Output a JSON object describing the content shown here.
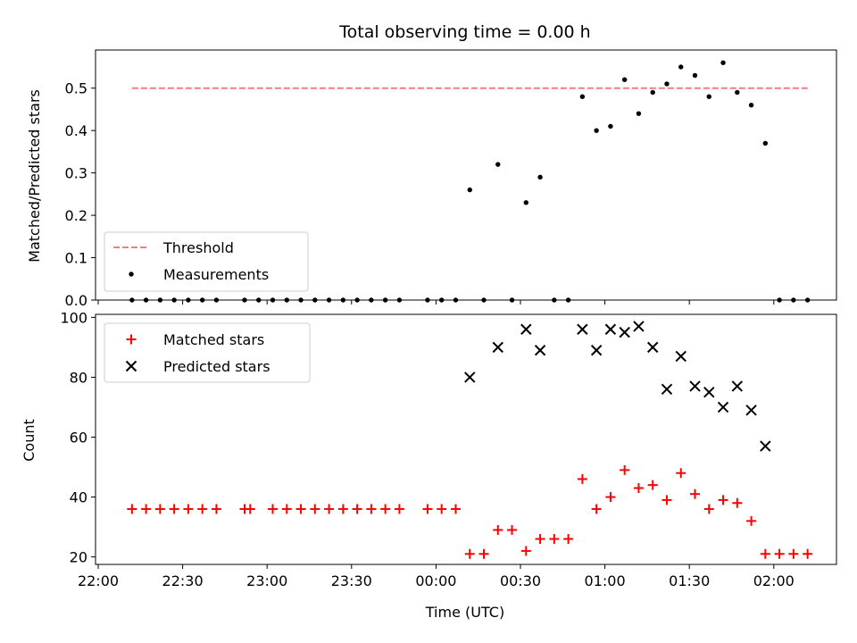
{
  "chart_data": [
    {
      "type": "scatter",
      "title": "Total observing time = 0.00 h",
      "ylabel": "Matched/Predicted stars",
      "ylim": [
        0,
        0.59
      ],
      "yticks": [
        "0.0",
        "0.1",
        "0.2",
        "0.3",
        "0.4",
        "0.5"
      ],
      "legend_position": "lower-left",
      "threshold": {
        "name": "Threshold",
        "value": 0.5,
        "x_start": "22:12",
        "x_end": "02:12",
        "color": "#f08080"
      },
      "series": [
        {
          "name": "Measurements",
          "color": "#000000",
          "points": [
            [
              "22:12",
              0
            ],
            [
              "22:17",
              0
            ],
            [
              "22:22",
              0
            ],
            [
              "22:27",
              0
            ],
            [
              "22:32",
              0
            ],
            [
              "22:37",
              0
            ],
            [
              "22:42",
              0
            ],
            [
              "22:52",
              0
            ],
            [
              "22:57",
              0
            ],
            [
              "23:02",
              0
            ],
            [
              "23:07",
              0
            ],
            [
              "23:12",
              0
            ],
            [
              "23:17",
              0
            ],
            [
              "23:22",
              0
            ],
            [
              "23:27",
              0
            ],
            [
              "23:32",
              0
            ],
            [
              "23:37",
              0
            ],
            [
              "23:42",
              0
            ],
            [
              "23:47",
              0
            ],
            [
              "23:57",
              0
            ],
            [
              "00:02",
              0
            ],
            [
              "00:07",
              0
            ],
            [
              "00:12",
              0.26
            ],
            [
              "00:17",
              0
            ],
            [
              "00:22",
              0.32
            ],
            [
              "00:27",
              0
            ],
            [
              "00:32",
              0.23
            ],
            [
              "00:37",
              0.29
            ],
            [
              "00:42",
              0
            ],
            [
              "00:47",
              0
            ],
            [
              "00:52",
              0.48
            ],
            [
              "00:57",
              0.4
            ],
            [
              "01:02",
              0.41
            ],
            [
              "01:07",
              0.52
            ],
            [
              "01:12",
              0.44
            ],
            [
              "01:17",
              0.49
            ],
            [
              "01:22",
              0.51
            ],
            [
              "01:27",
              0.55
            ],
            [
              "01:32",
              0.53
            ],
            [
              "01:37",
              0.48
            ],
            [
              "01:42",
              0.56
            ],
            [
              "01:47",
              0.49
            ],
            [
              "01:52",
              0.46
            ],
            [
              "01:57",
              0.37
            ],
            [
              "02:02",
              0
            ],
            [
              "02:07",
              0
            ],
            [
              "02:12",
              0
            ]
          ]
        }
      ]
    },
    {
      "type": "scatter",
      "xlabel": "Time (UTC)",
      "ylabel": "Count",
      "ylim": [
        17.5,
        101
      ],
      "yticks": [
        "20",
        "40",
        "60",
        "80",
        "100"
      ],
      "xticks": [
        "22:00",
        "22:30",
        "23:00",
        "23:30",
        "00:00",
        "00:30",
        "01:00",
        "01:30",
        "02:00"
      ],
      "legend_position": "upper-left",
      "series": [
        {
          "name": "Matched stars",
          "color": "#ff0000",
          "marker": "plus",
          "points": [
            [
              "22:12",
              36
            ],
            [
              "22:17",
              36
            ],
            [
              "22:22",
              36
            ],
            [
              "22:27",
              36
            ],
            [
              "22:32",
              36
            ],
            [
              "22:37",
              36
            ],
            [
              "22:42",
              36
            ],
            [
              "22:52",
              36
            ],
            [
              "22:54",
              36
            ],
            [
              "23:02",
              36
            ],
            [
              "23:07",
              36
            ],
            [
              "23:12",
              36
            ],
            [
              "23:17",
              36
            ],
            [
              "23:22",
              36
            ],
            [
              "23:27",
              36
            ],
            [
              "23:32",
              36
            ],
            [
              "23:37",
              36
            ],
            [
              "23:42",
              36
            ],
            [
              "23:47",
              36
            ],
            [
              "23:57",
              36
            ],
            [
              "00:02",
              36
            ],
            [
              "00:07",
              36
            ],
            [
              "00:12",
              21
            ],
            [
              "00:17",
              21
            ],
            [
              "00:22",
              29
            ],
            [
              "00:27",
              29
            ],
            [
              "00:32",
              22
            ],
            [
              "00:37",
              26
            ],
            [
              "00:42",
              26
            ],
            [
              "00:47",
              26
            ],
            [
              "00:52",
              46
            ],
            [
              "00:57",
              36
            ],
            [
              "01:02",
              40
            ],
            [
              "01:07",
              49
            ],
            [
              "01:12",
              43
            ],
            [
              "01:17",
              44
            ],
            [
              "01:22",
              39
            ],
            [
              "01:27",
              48
            ],
            [
              "01:32",
              41
            ],
            [
              "01:37",
              36
            ],
            [
              "01:42",
              39
            ],
            [
              "01:47",
              38
            ],
            [
              "01:52",
              32
            ],
            [
              "01:57",
              21
            ],
            [
              "02:02",
              21
            ],
            [
              "02:07",
              21
            ],
            [
              "02:12",
              21
            ]
          ]
        },
        {
          "name": "Predicted stars",
          "color": "#000000",
          "marker": "x",
          "points": [
            [
              "00:12",
              80
            ],
            [
              "00:22",
              90
            ],
            [
              "00:32",
              96
            ],
            [
              "00:37",
              89
            ],
            [
              "00:52",
              96
            ],
            [
              "00:57",
              89
            ],
            [
              "01:02",
              96
            ],
            [
              "01:07",
              95
            ],
            [
              "01:12",
              97
            ],
            [
              "01:17",
              90
            ],
            [
              "01:22",
              76
            ],
            [
              "01:27",
              87
            ],
            [
              "01:32",
              77
            ],
            [
              "01:37",
              75
            ],
            [
              "01:42",
              70
            ],
            [
              "01:47",
              77
            ],
            [
              "01:52",
              69
            ],
            [
              "01:57",
              57
            ]
          ]
        }
      ]
    }
  ]
}
